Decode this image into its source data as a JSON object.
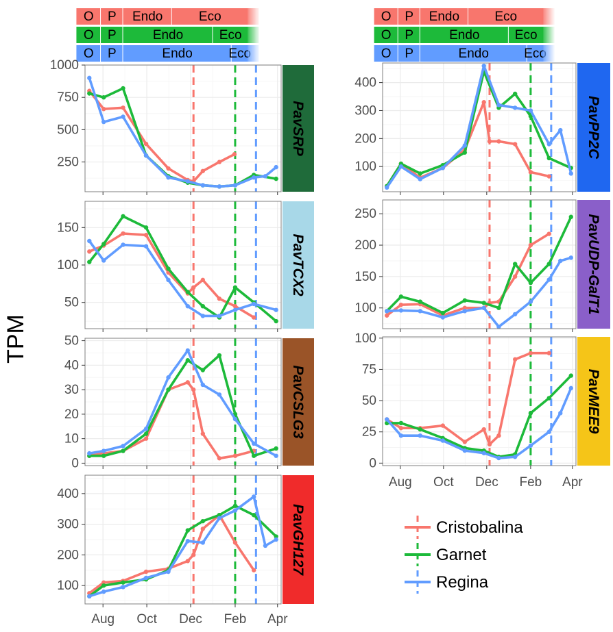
{
  "y_axis_label": "TPM",
  "colors": {
    "Cristobalina": "#f8766d",
    "Garnet": "#1dba3a",
    "Regina": "#619cff",
    "panel_border": "#333333",
    "grid_major": "#ebebeb",
    "grid_minor": "#f5f5f5"
  },
  "legend": {
    "position": "bottom-right",
    "items": [
      {
        "label": "Cristobalina",
        "color": "#f8766d"
      },
      {
        "label": "Garnet",
        "color": "#1dba3a"
      },
      {
        "label": "Regina",
        "color": "#619cff"
      }
    ]
  },
  "phase_bars": [
    {
      "variety": "Cristobalina",
      "color": "#f8766d",
      "segments": [
        {
          "label": "O",
          "start": "2017-06-25",
          "end": "2017-07-29"
        },
        {
          "label": "P",
          "start": "2017-07-29",
          "end": "2017-08-29"
        },
        {
          "label": "Endo",
          "start": "2017-08-29",
          "end": "2017-11-05"
        },
        {
          "label": "Eco",
          "start": "2017-11-05",
          "end": "2018-02-19"
        }
      ]
    },
    {
      "variety": "Garnet",
      "color": "#1dba3a",
      "segments": [
        {
          "label": "O",
          "start": "2017-06-25",
          "end": "2017-07-29"
        },
        {
          "label": "P",
          "start": "2017-07-29",
          "end": "2017-08-29"
        },
        {
          "label": "Endo",
          "start": "2017-08-29",
          "end": "2018-01-01"
        },
        {
          "label": "Eco",
          "start": "2018-01-01",
          "end": "2018-02-19"
        }
      ]
    },
    {
      "variety": "Regina",
      "color": "#619cff",
      "segments": [
        {
          "label": "O",
          "start": "2017-06-25",
          "end": "2017-07-29"
        },
        {
          "label": "P",
          "start": "2017-07-29",
          "end": "2017-08-29"
        },
        {
          "label": "Endo",
          "start": "2017-08-29",
          "end": "2018-01-27"
        },
        {
          "label": "Eco",
          "start": "2018-01-27",
          "end": "2018-02-19"
        }
      ]
    }
  ],
  "chart_data": [
    {
      "type": "line",
      "gene": "PavSRP",
      "strip_color": "#1f6b3a",
      "strip_text_color": "#000000",
      "x_ticks": [
        "Aug",
        "Oct",
        "Dec",
        "Feb",
        "Apr"
      ],
      "x_tick_dates": [
        "2017-08-01",
        "2017-10-01",
        "2017-12-01",
        "2018-02-01",
        "2018-04-01"
      ],
      "x_range": [
        "2017-07-07",
        "2018-04-06"
      ],
      "y_ticks": [
        250,
        500,
        750,
        1000
      ],
      "ylim": [
        20,
        1000
      ],
      "dormancy_release": {
        "Cristobalina": "2017-12-05",
        "Garnet": "2018-02-01",
        "Regina": "2018-03-02"
      },
      "series": [
        {
          "name": "Cristobalina",
          "x": [
            "2017-07-13",
            "2017-08-02",
            "2017-08-29",
            "2017-09-30",
            "2017-10-31",
            "2017-11-27",
            "2017-12-05",
            "2017-12-18",
            "2018-01-10",
            "2018-01-31"
          ],
          "y": [
            800,
            660,
            670,
            390,
            200,
            110,
            100,
            180,
            250,
            310
          ]
        },
        {
          "name": "Garnet",
          "x": [
            "2017-07-13",
            "2017-08-02",
            "2017-08-29",
            "2017-09-30",
            "2017-10-31",
            "2017-11-27",
            "2017-12-18",
            "2018-01-10",
            "2018-02-01",
            "2018-02-27",
            "2018-03-30"
          ],
          "y": [
            780,
            750,
            820,
            300,
            140,
            90,
            70,
            60,
            70,
            150,
            120
          ]
        },
        {
          "name": "Regina",
          "x": [
            "2017-07-13",
            "2017-08-02",
            "2017-08-29",
            "2017-09-30",
            "2017-10-31",
            "2017-11-27",
            "2017-12-18",
            "2018-01-10",
            "2018-02-01",
            "2018-02-27",
            "2018-03-15",
            "2018-03-30"
          ],
          "y": [
            900,
            560,
            600,
            300,
            130,
            100,
            70,
            60,
            70,
            130,
            140,
            210
          ]
        }
      ]
    },
    {
      "type": "line",
      "gene": "PavTCX2",
      "strip_color": "#a8d8e8",
      "strip_text_color": "#000000",
      "x_ticks": [
        "Aug",
        "Oct",
        "Dec",
        "Feb",
        "Apr"
      ],
      "x_tick_dates": [
        "2017-08-01",
        "2017-10-01",
        "2017-12-01",
        "2018-02-01",
        "2018-04-01"
      ],
      "x_range": [
        "2017-07-07",
        "2018-04-06"
      ],
      "y_ticks": [
        50,
        100,
        150
      ],
      "ylim": [
        15,
        185
      ],
      "dormancy_release": {
        "Cristobalina": "2017-12-05",
        "Garnet": "2018-02-01",
        "Regina": "2018-03-02"
      },
      "series": [
        {
          "name": "Cristobalina",
          "x": [
            "2017-07-13",
            "2017-08-02",
            "2017-08-29",
            "2017-09-30",
            "2017-10-31",
            "2017-11-27",
            "2017-12-05",
            "2017-12-18",
            "2018-01-10",
            "2018-02-01",
            "2018-02-27"
          ],
          "y": [
            118,
            126,
            142,
            140,
            90,
            62,
            70,
            80,
            55,
            45,
            30
          ]
        },
        {
          "name": "Garnet",
          "x": [
            "2017-07-13",
            "2017-08-02",
            "2017-08-29",
            "2017-09-30",
            "2017-10-31",
            "2017-11-27",
            "2017-12-18",
            "2018-01-10",
            "2018-02-01",
            "2018-02-27",
            "2018-03-30"
          ],
          "y": [
            104,
            128,
            165,
            150,
            95,
            64,
            45,
            30,
            70,
            50,
            25
          ]
        },
        {
          "name": "Regina",
          "x": [
            "2017-07-13",
            "2017-08-02",
            "2017-08-29",
            "2017-09-30",
            "2017-10-31",
            "2017-11-27",
            "2017-12-18",
            "2018-01-10",
            "2018-02-01",
            "2018-02-27",
            "2018-03-30"
          ],
          "y": [
            132,
            106,
            127,
            125,
            80,
            45,
            32,
            32,
            40,
            48,
            40
          ]
        }
      ]
    },
    {
      "type": "line",
      "gene": "PavCSLG3",
      "strip_color": "#9a5428",
      "strip_text_color": "#000000",
      "x_ticks": [
        "Aug",
        "Oct",
        "Dec",
        "Feb",
        "Apr"
      ],
      "x_tick_dates": [
        "2017-08-01",
        "2017-10-01",
        "2017-12-01",
        "2018-02-01",
        "2018-04-01"
      ],
      "x_range": [
        "2017-07-07",
        "2018-04-06"
      ],
      "y_ticks": [
        0,
        10,
        20,
        30,
        40,
        50
      ],
      "ylim": [
        -1,
        51
      ],
      "dormancy_release": {
        "Cristobalina": "2017-12-05",
        "Garnet": "2018-02-01",
        "Regina": "2018-03-02"
      },
      "series": [
        {
          "name": "Cristobalina",
          "x": [
            "2017-07-13",
            "2017-08-02",
            "2017-08-29",
            "2017-09-30",
            "2017-10-31",
            "2017-11-27",
            "2017-12-05",
            "2017-12-18",
            "2018-01-10",
            "2018-02-01",
            "2018-02-27"
          ],
          "y": [
            3,
            4,
            5,
            10,
            30,
            33,
            30,
            12,
            2,
            3,
            5
          ]
        },
        {
          "name": "Garnet",
          "x": [
            "2017-07-13",
            "2017-08-02",
            "2017-08-29",
            "2017-09-30",
            "2017-10-31",
            "2017-11-27",
            "2017-12-18",
            "2018-01-10",
            "2018-02-01",
            "2018-02-27",
            "2018-03-30"
          ],
          "y": [
            3,
            3,
            5,
            12,
            30,
            42,
            38,
            44,
            20,
            3,
            6
          ]
        },
        {
          "name": "Regina",
          "x": [
            "2017-07-13",
            "2017-08-02",
            "2017-08-29",
            "2017-09-30",
            "2017-10-31",
            "2017-11-27",
            "2017-12-18",
            "2018-01-10",
            "2018-02-01",
            "2018-02-27",
            "2018-03-30"
          ],
          "y": [
            4,
            5,
            7,
            14,
            35,
            46,
            32,
            28,
            18,
            8,
            3
          ]
        }
      ]
    },
    {
      "type": "line",
      "gene": "PavGH127",
      "strip_color": "#f02b2b",
      "strip_text_color": "#000000",
      "x_ticks": [
        "Aug",
        "Oct",
        "Dec",
        "Feb",
        "Apr"
      ],
      "x_tick_dates": [
        "2017-08-01",
        "2017-10-01",
        "2017-12-01",
        "2018-02-01",
        "2018-04-01"
      ],
      "x_range": [
        "2017-07-07",
        "2018-04-06"
      ],
      "y_ticks": [
        100,
        200,
        300,
        400
      ],
      "ylim": [
        40,
        460
      ],
      "dormancy_release": {
        "Cristobalina": "2017-12-05",
        "Garnet": "2018-02-01",
        "Regina": "2018-03-02"
      },
      "series": [
        {
          "name": "Cristobalina",
          "x": [
            "2017-07-13",
            "2017-08-02",
            "2017-08-29",
            "2017-09-30",
            "2017-10-31",
            "2017-11-27",
            "2017-12-05",
            "2017-12-18",
            "2018-01-10",
            "2018-02-01",
            "2018-02-27"
          ],
          "y": [
            75,
            110,
            115,
            145,
            155,
            180,
            200,
            285,
            330,
            240,
            150
          ]
        },
        {
          "name": "Garnet",
          "x": [
            "2017-07-13",
            "2017-08-02",
            "2017-08-29",
            "2017-09-30",
            "2017-10-31",
            "2017-11-27",
            "2017-12-18",
            "2018-01-10",
            "2018-02-01",
            "2018-02-27",
            "2018-03-30"
          ],
          "y": [
            65,
            100,
            110,
            120,
            150,
            280,
            310,
            330,
            360,
            330,
            260
          ]
        },
        {
          "name": "Regina",
          "x": [
            "2017-07-13",
            "2017-08-02",
            "2017-08-29",
            "2017-09-30",
            "2017-10-31",
            "2017-11-27",
            "2017-12-18",
            "2018-01-10",
            "2018-02-01",
            "2018-02-27",
            "2018-03-15",
            "2018-03-30"
          ],
          "y": [
            65,
            80,
            95,
            125,
            145,
            245,
            240,
            320,
            345,
            390,
            230,
            250
          ]
        }
      ]
    },
    {
      "type": "line",
      "gene": "PavPP2C",
      "strip_color": "#1f67f0",
      "strip_text_color": "#000000",
      "x_ticks": [
        "Aug",
        "Oct",
        "Dec",
        "Feb",
        "Apr"
      ],
      "x_tick_dates": [
        "2017-08-01",
        "2017-10-01",
        "2017-12-01",
        "2018-02-01",
        "2018-04-01"
      ],
      "x_range": [
        "2017-07-07",
        "2018-04-06"
      ],
      "y_ticks": [
        100,
        200,
        300,
        400
      ],
      "ylim": [
        10,
        470
      ],
      "dormancy_release": {
        "Cristobalina": "2017-12-05",
        "Garnet": "2018-02-01",
        "Regina": "2018-03-02"
      },
      "series": [
        {
          "name": "Cristobalina",
          "x": [
            "2017-07-13",
            "2017-08-02",
            "2017-08-29",
            "2017-09-30",
            "2017-10-31",
            "2017-11-27",
            "2017-12-05",
            "2017-12-18",
            "2018-01-10",
            "2018-02-01",
            "2018-02-27"
          ],
          "y": [
            30,
            110,
            60,
            95,
            160,
            330,
            190,
            190,
            180,
            80,
            65
          ]
        },
        {
          "name": "Garnet",
          "x": [
            "2017-07-13",
            "2017-08-02",
            "2017-08-29",
            "2017-09-30",
            "2017-10-31",
            "2017-11-27",
            "2017-12-18",
            "2018-01-10",
            "2018-02-01",
            "2018-02-27",
            "2018-03-30"
          ],
          "y": [
            30,
            110,
            75,
            105,
            150,
            440,
            310,
            360,
            280,
            130,
            95
          ]
        },
        {
          "name": "Regina",
          "x": [
            "2017-07-13",
            "2017-08-02",
            "2017-08-29",
            "2017-09-30",
            "2017-10-31",
            "2017-11-27",
            "2017-12-18",
            "2018-01-10",
            "2018-02-01",
            "2018-02-27",
            "2018-03-15",
            "2018-03-30"
          ],
          "y": [
            25,
            100,
            55,
            95,
            175,
            460,
            320,
            310,
            300,
            180,
            230,
            75
          ]
        }
      ]
    },
    {
      "type": "line",
      "gene": "PavUDP-GalT1",
      "strip_color": "#8a5fc9",
      "strip_text_color": "#000000",
      "x_ticks": [
        "Aug",
        "Oct",
        "Dec",
        "Feb",
        "Apr"
      ],
      "x_tick_dates": [
        "2017-08-01",
        "2017-10-01",
        "2017-12-01",
        "2018-02-01",
        "2018-04-01"
      ],
      "x_range": [
        "2017-07-07",
        "2018-04-06"
      ],
      "y_ticks": [
        100,
        150,
        200,
        250
      ],
      "ylim": [
        67,
        272
      ],
      "dormancy_release": {
        "Cristobalina": "2017-12-05",
        "Garnet": "2018-02-01",
        "Regina": "2018-03-02"
      },
      "series": [
        {
          "name": "Cristobalina",
          "x": [
            "2017-07-13",
            "2017-08-02",
            "2017-08-29",
            "2017-09-30",
            "2017-10-31",
            "2017-11-27",
            "2017-12-05",
            "2017-12-18",
            "2018-01-10",
            "2018-02-01",
            "2018-02-27"
          ],
          "y": [
            88,
            105,
            106,
            88,
            100,
            100,
            108,
            110,
            150,
            200,
            218
          ]
        },
        {
          "name": "Garnet",
          "x": [
            "2017-07-13",
            "2017-08-02",
            "2017-08-29",
            "2017-09-30",
            "2017-10-31",
            "2017-11-27",
            "2017-12-18",
            "2018-01-10",
            "2018-02-01",
            "2018-02-27",
            "2018-03-30"
          ],
          "y": [
            95,
            118,
            110,
            92,
            112,
            108,
            100,
            170,
            140,
            170,
            245
          ]
        },
        {
          "name": "Regina",
          "x": [
            "2017-07-13",
            "2017-08-02",
            "2017-08-29",
            "2017-09-30",
            "2017-10-31",
            "2017-11-27",
            "2017-12-18",
            "2018-01-10",
            "2018-02-01",
            "2018-02-27",
            "2018-03-15",
            "2018-03-30"
          ],
          "y": [
            95,
            96,
            95,
            85,
            95,
            100,
            70,
            90,
            110,
            145,
            175,
            180
          ]
        }
      ]
    },
    {
      "type": "line",
      "gene": "PavMEE9",
      "strip_color": "#f5c518",
      "strip_text_color": "#000000",
      "x_ticks": [
        "Aug",
        "Oct",
        "Dec",
        "Feb",
        "Apr"
      ],
      "x_tick_dates": [
        "2017-08-01",
        "2017-10-01",
        "2017-12-01",
        "2018-02-01",
        "2018-04-01"
      ],
      "x_range": [
        "2017-07-07",
        "2018-04-06"
      ],
      "y_ticks": [
        0,
        25,
        50,
        75,
        100
      ],
      "ylim": [
        -2,
        101
      ],
      "dormancy_release": {
        "Cristobalina": "2017-12-05",
        "Garnet": "2018-02-01",
        "Regina": "2018-03-02"
      },
      "series": [
        {
          "name": "Cristobalina",
          "x": [
            "2017-07-13",
            "2017-08-02",
            "2017-08-29",
            "2017-09-30",
            "2017-10-31",
            "2017-11-27",
            "2017-12-05",
            "2017-12-18",
            "2018-01-10",
            "2018-02-01",
            "2018-02-27"
          ],
          "y": [
            35,
            28,
            28,
            30,
            17,
            27,
            15,
            22,
            83,
            88,
            88
          ]
        },
        {
          "name": "Garnet",
          "x": [
            "2017-07-13",
            "2017-08-02",
            "2017-08-29",
            "2017-09-30",
            "2017-10-31",
            "2017-11-27",
            "2017-12-18",
            "2018-01-10",
            "2018-02-01",
            "2018-02-27",
            "2018-03-30"
          ],
          "y": [
            32,
            32,
            27,
            20,
            12,
            10,
            5,
            7,
            40,
            52,
            70
          ]
        },
        {
          "name": "Regina",
          "x": [
            "2017-07-13",
            "2017-08-02",
            "2017-08-29",
            "2017-09-30",
            "2017-10-31",
            "2017-11-27",
            "2017-12-18",
            "2018-01-10",
            "2018-02-01",
            "2018-02-27",
            "2018-03-15",
            "2018-03-30"
          ],
          "y": [
            35,
            22,
            22,
            18,
            10,
            8,
            4,
            5,
            14,
            25,
            40,
            60
          ]
        }
      ]
    }
  ]
}
